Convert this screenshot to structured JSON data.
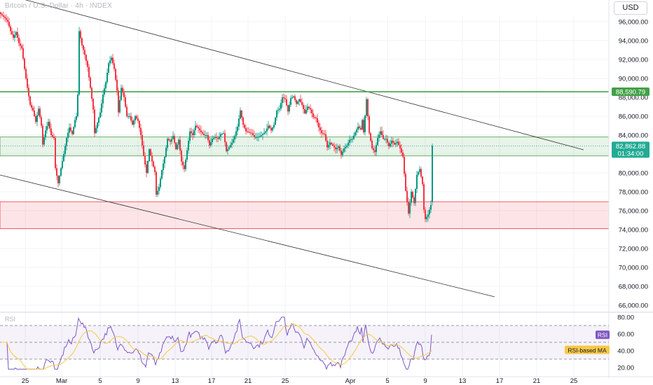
{
  "header": {
    "title": "Bitcoin / U.S. Dollar · 4h · INDEX",
    "currency_button": "USD"
  },
  "price_panel": {
    "y_ticks": [
      "96,000.00",
      "94,000.00",
      "92,000.00",
      "90,000.00",
      "88,000.00",
      "86,000.00",
      "84,000.00",
      "82,000.00",
      "80,000.00",
      "78,000.00",
      "76,000.00",
      "74,000.00",
      "72,000.00",
      "70,000.00",
      "68,000.00",
      "66,000.00"
    ],
    "resistance_label": "88,590.79",
    "last_price_label": "82,862.88",
    "countdown_label": "01:34:00",
    "colors": {
      "up": "#089981",
      "down": "#f23645",
      "support_line": "#43a047",
      "tag": "#22ab94"
    }
  },
  "rsi_panel": {
    "label": "RSI",
    "y_ticks": [
      "80.00",
      "60.00",
      "40.00",
      "20.00"
    ],
    "rsi_tag": "RSI",
    "ma_tag": "RSI-based MA",
    "colors": {
      "rsi": "#7e57c2",
      "ma": "#f7c948"
    }
  },
  "x_axis": {
    "ticks": [
      "25",
      "Mar",
      "5",
      "9",
      "13",
      "17",
      "21",
      "25",
      "Apr",
      "5",
      "9",
      "13",
      "17",
      "21",
      "25"
    ]
  },
  "chart_data": {
    "type": "candlestick",
    "title": "Bitcoin / U.S. Dollar · 4h · INDEX",
    "ylim": [
      65000,
      97500
    ],
    "candle_close_path": [
      [
        0,
        96800
      ],
      [
        6,
        96400
      ],
      [
        10,
        96000
      ],
      [
        14,
        95000
      ],
      [
        18,
        94300
      ],
      [
        22,
        94900
      ],
      [
        26,
        93700
      ],
      [
        30,
        93200
      ],
      [
        34,
        91000
      ],
      [
        38,
        89000
      ],
      [
        42,
        87200
      ],
      [
        46,
        86600
      ],
      [
        50,
        85400
      ],
      [
        54,
        86800
      ],
      [
        58,
        85000
      ],
      [
        60,
        83000
      ],
      [
        64,
        84500
      ],
      [
        68,
        85400
      ],
      [
        72,
        84000
      ],
      [
        76,
        83700
      ],
      [
        78,
        80500
      ],
      [
        82,
        78900
      ],
      [
        86,
        80500
      ],
      [
        90,
        82000
      ],
      [
        94,
        83700
      ],
      [
        98,
        84800
      ],
      [
        102,
        84100
      ],
      [
        106,
        85600
      ],
      [
        108,
        86000
      ],
      [
        110,
        88300
      ],
      [
        112,
        95000
      ],
      [
        116,
        93500
      ],
      [
        120,
        92500
      ],
      [
        124,
        91200
      ],
      [
        128,
        89000
      ],
      [
        132,
        86700
      ],
      [
        134,
        84200
      ],
      [
        138,
        85300
      ],
      [
        142,
        86400
      ],
      [
        146,
        88300
      ],
      [
        150,
        89600
      ],
      [
        154,
        91600
      ],
      [
        158,
        92200
      ],
      [
        162,
        91000
      ],
      [
        166,
        88700
      ],
      [
        168,
        86400
      ],
      [
        172,
        89000
      ],
      [
        176,
        88000
      ],
      [
        180,
        86000
      ],
      [
        184,
        86000
      ],
      [
        188,
        85100
      ],
      [
        192,
        86000
      ],
      [
        196,
        85500
      ],
      [
        200,
        84000
      ],
      [
        204,
        81800
      ],
      [
        208,
        80000
      ],
      [
        212,
        82500
      ],
      [
        216,
        81200
      ],
      [
        220,
        80100
      ],
      [
        222,
        77700
      ],
      [
        226,
        78500
      ],
      [
        230,
        80300
      ],
      [
        234,
        81700
      ],
      [
        238,
        83600
      ],
      [
        242,
        83300
      ],
      [
        246,
        83900
      ],
      [
        250,
        82500
      ],
      [
        254,
        83500
      ],
      [
        258,
        81200
      ],
      [
        262,
        80400
      ],
      [
        266,
        82400
      ],
      [
        270,
        84400
      ],
      [
        274,
        84000
      ],
      [
        278,
        85000
      ],
      [
        282,
        84700
      ],
      [
        286,
        84300
      ],
      [
        290,
        84000
      ],
      [
        294,
        84000
      ],
      [
        298,
        82900
      ],
      [
        302,
        83600
      ],
      [
        306,
        83800
      ],
      [
        310,
        83600
      ],
      [
        314,
        84100
      ],
      [
        318,
        84200
      ],
      [
        322,
        82300
      ],
      [
        326,
        82700
      ],
      [
        330,
        83200
      ],
      [
        334,
        83900
      ],
      [
        338,
        84900
      ],
      [
        342,
        86600
      ],
      [
        346,
        85100
      ],
      [
        350,
        84400
      ],
      [
        354,
        84300
      ],
      [
        358,
        84200
      ],
      [
        362,
        83800
      ],
      [
        366,
        83800
      ],
      [
        370,
        83900
      ],
      [
        374,
        84100
      ],
      [
        378,
        84400
      ],
      [
        382,
        85000
      ],
      [
        386,
        84500
      ],
      [
        390,
        85100
      ],
      [
        394,
        86600
      ],
      [
        398,
        86800
      ],
      [
        402,
        88000
      ],
      [
        406,
        87800
      ],
      [
        410,
        86500
      ],
      [
        414,
        87900
      ],
      [
        418,
        88100
      ],
      [
        422,
        87300
      ],
      [
        426,
        87800
      ],
      [
        430,
        87200
      ],
      [
        434,
        86300
      ],
      [
        438,
        87000
      ],
      [
        442,
        86700
      ],
      [
        446,
        85900
      ],
      [
        450,
        85800
      ],
      [
        454,
        84800
      ],
      [
        458,
        84200
      ],
      [
        462,
        84100
      ],
      [
        466,
        82700
      ],
      [
        470,
        83200
      ],
      [
        474,
        82900
      ],
      [
        478,
        82500
      ],
      [
        482,
        82800
      ],
      [
        486,
        81900
      ],
      [
        490,
        82600
      ],
      [
        494,
        82900
      ],
      [
        498,
        83500
      ],
      [
        502,
        83600
      ],
      [
        506,
        84300
      ],
      [
        510,
        84900
      ],
      [
        514,
        84600
      ],
      [
        516,
        85600
      ],
      [
        518,
        84300
      ],
      [
        522,
        87800
      ],
      [
        526,
        84200
      ],
      [
        530,
        82600
      ],
      [
        534,
        82200
      ],
      [
        538,
        83700
      ],
      [
        542,
        84400
      ],
      [
        546,
        83600
      ],
      [
        550,
        83600
      ],
      [
        554,
        82800
      ],
      [
        558,
        83400
      ],
      [
        562,
        83000
      ],
      [
        566,
        83300
      ],
      [
        570,
        82600
      ],
      [
        574,
        81700
      ],
      [
        578,
        78100
      ],
      [
        582,
        75700
      ],
      [
        586,
        78000
      ],
      [
        590,
        76800
      ],
      [
        594,
        79800
      ],
      [
        598,
        80400
      ],
      [
        602,
        78800
      ],
      [
        604,
        76100
      ],
      [
        606,
        75100
      ],
      [
        610,
        75600
      ],
      [
        614,
        76600
      ],
      [
        616,
        82860
      ]
    ],
    "annotations": {
      "resistance_level": 88590.79,
      "last_price": 82862.88,
      "range_band": [
        81800,
        83800
      ],
      "demand_zone": [
        74100,
        76950
      ]
    },
    "rsi": {
      "ylim": [
        12,
        84
      ],
      "levels": [
        70,
        50,
        30
      ]
    }
  }
}
